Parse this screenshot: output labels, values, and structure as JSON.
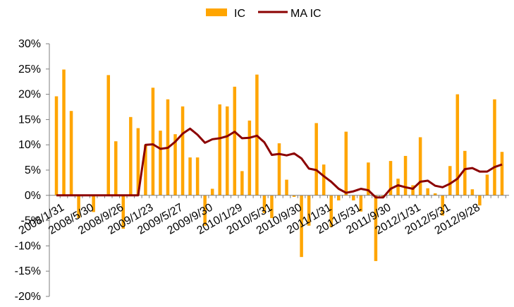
{
  "chart_data": {
    "type": "bar",
    "legend": {
      "placement": "top-center",
      "items": [
        "IC",
        "MA IC"
      ]
    },
    "colors": {
      "bar": "#FFA500",
      "line": "#8B0000",
      "axis": "#7f7f7f"
    },
    "ylim": [
      -0.2,
      0.3
    ],
    "yticks": [
      0.3,
      0.25,
      0.2,
      0.15,
      0.1,
      0.05,
      0.0,
      -0.05,
      -0.1,
      -0.15,
      -0.2
    ],
    "ytick_labels": [
      "30%",
      "25%",
      "20%",
      "15%",
      "10%",
      "5%",
      "0%",
      "-5%",
      "-10%",
      "-15%",
      "-20%"
    ],
    "xlabels": [
      {
        "index": 0,
        "label": "2008/1/31"
      },
      {
        "index": 4,
        "label": "2008/5/30"
      },
      {
        "index": 8,
        "label": "2008/9/26"
      },
      {
        "index": 12,
        "label": "2009/1/23"
      },
      {
        "index": 16,
        "label": "2009/5/27"
      },
      {
        "index": 20,
        "label": "2009/9/30"
      },
      {
        "index": 24,
        "label": "2010/1/29"
      },
      {
        "index": 28,
        "label": "2010/5/31"
      },
      {
        "index": 32,
        "label": "2010/9/30"
      },
      {
        "index": 36,
        "label": "2011/1/31"
      },
      {
        "index": 40,
        "label": "2011/5/31"
      },
      {
        "index": 44,
        "label": "2011/9/30"
      },
      {
        "index": 48,
        "label": "2012/1/31"
      },
      {
        "index": 52,
        "label": "2012/5/31"
      },
      {
        "index": 56,
        "label": "2012/9/28"
      }
    ],
    "series": [
      {
        "name": "IC",
        "type": "bar",
        "values": [
          0.196,
          0.249,
          0.167,
          -0.045,
          0.0,
          -0.033,
          0.0,
          0.238,
          0.107,
          -0.066,
          0.155,
          0.133,
          0.1,
          0.213,
          0.128,
          0.19,
          0.121,
          0.176,
          0.075,
          0.075,
          -0.06,
          0.013,
          0.18,
          0.176,
          0.215,
          0.048,
          0.148,
          0.239,
          -0.035,
          -0.045,
          0.103,
          0.031,
          -0.003,
          -0.122,
          -0.06,
          0.143,
          0.061,
          -0.063,
          -0.01,
          0.126,
          -0.01,
          -0.032,
          0.065,
          -0.13,
          -0.004,
          0.068,
          0.033,
          0.078,
          0.02,
          0.115,
          0.014,
          0.004,
          -0.04,
          0.058,
          0.2,
          0.088,
          0.012,
          -0.02,
          0.041,
          0.19,
          0.086
        ]
      },
      {
        "name": "MA IC",
        "type": "line",
        "values": [
          0.0,
          0.0,
          0.0,
          0.0,
          0.0,
          0.0,
          0.0,
          0.0,
          0.0,
          0.0,
          0.0,
          0.0,
          0.1,
          0.101,
          0.092,
          0.094,
          0.106,
          0.122,
          0.132,
          0.12,
          0.104,
          0.111,
          0.113,
          0.117,
          0.126,
          0.113,
          0.114,
          0.118,
          0.105,
          0.08,
          0.082,
          0.079,
          0.083,
          0.073,
          0.053,
          0.05,
          0.038,
          0.027,
          0.013,
          0.005,
          0.008,
          0.013,
          0.01,
          -0.004,
          -0.004,
          0.013,
          0.02,
          0.016,
          0.013,
          0.027,
          0.029,
          0.019,
          0.016,
          0.023,
          0.033,
          0.052,
          0.054,
          0.047,
          0.047,
          0.056,
          0.061
        ]
      }
    ]
  }
}
